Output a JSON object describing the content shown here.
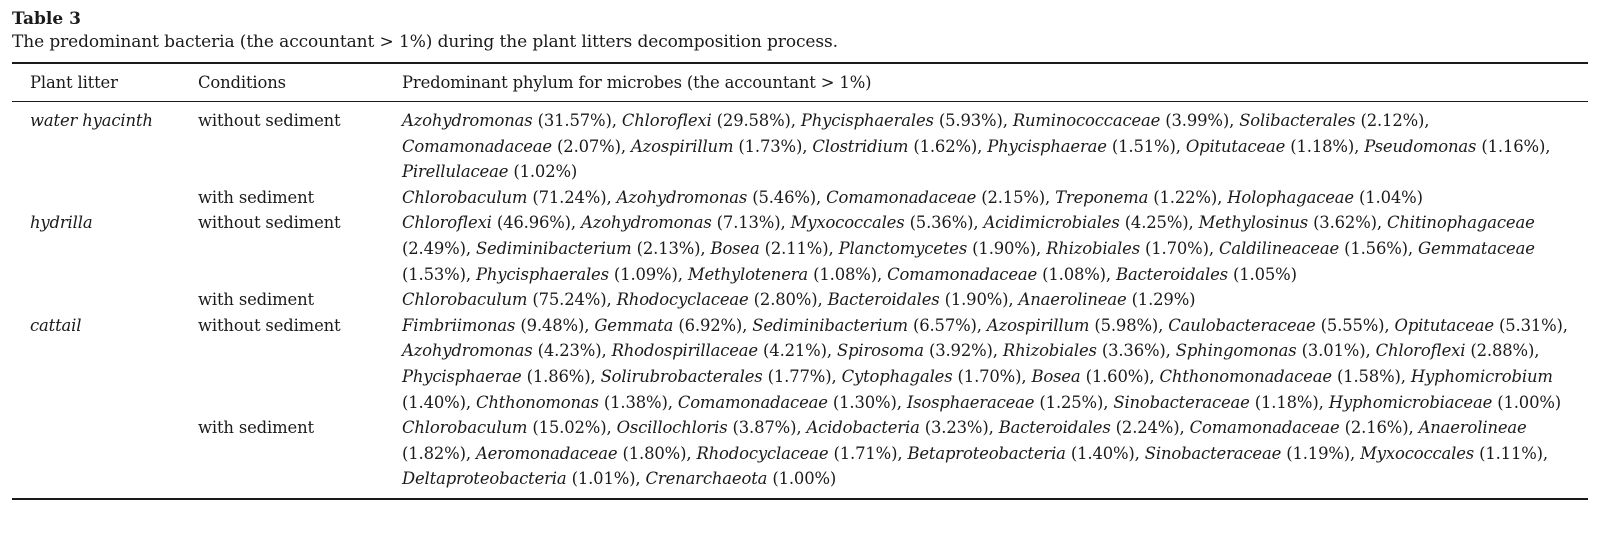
{
  "table_label": "Table 3",
  "caption": "The predominant bacteria (the accountant > 1%) during the plant litters decomposition process.",
  "headers": {
    "plant": "Plant litter",
    "conditions": "Conditions",
    "phylum": "Predominant phylum for microbes (the accountant > 1%)"
  },
  "rows": [
    {
      "plant": "water hyacinth",
      "condition": "without sediment",
      "taxa": [
        {
          "name": "Azohydromonas",
          "pct": "(31.57%)"
        },
        {
          "name": "Chloroflexi",
          "pct": "(29.58%)"
        },
        {
          "name": "Phycisphaerales",
          "pct": "(5.93%)"
        },
        {
          "name": "Ruminococcaceae",
          "pct": "(3.99%)"
        },
        {
          "name": "Solibacterales",
          "pct": "(2.12%)"
        },
        {
          "name": "Comamonadaceae",
          "pct": "(2.07%)"
        },
        {
          "name": "Azospirillum",
          "pct": "(1.73%)"
        },
        {
          "name": "Clostridium",
          "pct": "(1.62%)"
        },
        {
          "name": "Phycisphaerae",
          "pct": "(1.51%)"
        },
        {
          "name": "Opitutaceae",
          "pct": "(1.18%)"
        },
        {
          "name": "Pseudomonas",
          "pct": "(1.16%)"
        },
        {
          "name": "Pirellulaceae",
          "pct": "(1.02%)"
        }
      ]
    },
    {
      "plant": "",
      "condition": "with sediment",
      "taxa": [
        {
          "name": "Chlorobaculum",
          "pct": "(71.24%)"
        },
        {
          "name": "Azohydromonas",
          "pct": "(5.46%)"
        },
        {
          "name": "Comamonadaceae",
          "pct": "(2.15%)"
        },
        {
          "name": "Treponema",
          "pct": "(1.22%)"
        },
        {
          "name": "Holophagaceae",
          "pct": "(1.04%)"
        }
      ]
    },
    {
      "plant": "hydrilla",
      "condition": "without sediment",
      "taxa": [
        {
          "name": "Chloroflexi",
          "pct": "(46.96%)"
        },
        {
          "name": "Azohydromonas",
          "pct": "(7.13%)"
        },
        {
          "name": "Myxococcales",
          "pct": "(5.36%)"
        },
        {
          "name": "Acidimicrobiales",
          "pct": "(4.25%)"
        },
        {
          "name": "Methylosinus",
          "pct": "(3.62%)"
        },
        {
          "name": "Chitinophagaceae",
          "pct": "(2.49%)"
        },
        {
          "name": "Sediminibacterium",
          "pct": "(2.13%)"
        },
        {
          "name": "Bosea",
          "pct": "(2.11%)"
        },
        {
          "name": "Planctomycetes",
          "pct": "(1.90%)"
        },
        {
          "name": "Rhizobiales",
          "pct": "(1.70%)"
        },
        {
          "name": "Caldilineaceae",
          "pct": "(1.56%)"
        },
        {
          "name": "Gemmataceae",
          "pct": "(1.53%)"
        },
        {
          "name": "Phycisphaerales",
          "pct": "(1.09%)"
        },
        {
          "name": "Methylotenera",
          "pct": "(1.08%)"
        },
        {
          "name": "Comamonadaceae",
          "pct": "(1.08%)"
        },
        {
          "name": "Bacteroidales",
          "pct": "(1.05%)"
        }
      ]
    },
    {
      "plant": "",
      "condition": "with sediment",
      "taxa": [
        {
          "name": "Chlorobaculum",
          "pct": "(75.24%)"
        },
        {
          "name": "Rhodocyclaceae",
          "pct": "(2.80%)"
        },
        {
          "name": "Bacteroidales",
          "pct": "(1.90%)"
        },
        {
          "name": "Anaerolineae",
          "pct": "(1.29%)"
        }
      ]
    },
    {
      "plant": "cattail",
      "condition": "without sediment",
      "taxa": [
        {
          "name": "Fimbriimonas",
          "pct": "(9.48%)"
        },
        {
          "name": "Gemmata",
          "pct": "(6.92%)"
        },
        {
          "name": "Sediminibacterium",
          "pct": "(6.57%)"
        },
        {
          "name": "Azospirillum",
          "pct": "(5.98%)"
        },
        {
          "name": "Caulobacteraceae",
          "pct": "(5.55%)"
        },
        {
          "name": "Opitutaceae",
          "pct": "(5.31%)"
        },
        {
          "name": "Azohydromonas",
          "pct": "(4.23%)"
        },
        {
          "name": "Rhodospirillaceae",
          "pct": "(4.21%)"
        },
        {
          "name": "Spirosoma",
          "pct": "(3.92%)"
        },
        {
          "name": "Rhizobiales",
          "pct": "(3.36%)"
        },
        {
          "name": "Sphingomonas",
          "pct": "(3.01%)"
        },
        {
          "name": "Chloroflexi",
          "pct": "(2.88%)"
        },
        {
          "name": "Phycisphaerae",
          "pct": "(1.86%)"
        },
        {
          "name": "Solirubrobacterales",
          "pct": "(1.77%)"
        },
        {
          "name": "Cytophagales",
          "pct": "(1.70%)"
        },
        {
          "name": "Bosea",
          "pct": "(1.60%)"
        },
        {
          "name": "Chthonomonadaceae",
          "pct": "(1.58%)"
        },
        {
          "name": "Hyphomicrobium",
          "pct": "(1.40%)"
        },
        {
          "name": "Chthonomonas",
          "pct": "(1.38%)"
        },
        {
          "name": "Comamonadaceae",
          "pct": "(1.30%)"
        },
        {
          "name": "Isosphaeraceae",
          "pct": "(1.25%)"
        },
        {
          "name": "Sinobacteraceae",
          "pct": "(1.18%)"
        },
        {
          "name": "Hyphomicrobiaceae",
          "pct": "(1.00%)"
        }
      ]
    },
    {
      "plant": "",
      "condition": "with sediment",
      "taxa": [
        {
          "name": "Chlorobaculum",
          "pct": "(15.02%)"
        },
        {
          "name": "Oscillochloris",
          "pct": "(3.87%)"
        },
        {
          "name": "Acidobacteria",
          "pct": "(3.23%)"
        },
        {
          "name": "Bacteroidales",
          "pct": "(2.24%)"
        },
        {
          "name": "Comamonadaceae",
          "pct": "(2.16%)"
        },
        {
          "name": "Anaerolineae",
          "pct": "(1.82%)"
        },
        {
          "name": "Aeromonadaceae",
          "pct": "(1.80%)"
        },
        {
          "name": "Rhodocyclaceae",
          "pct": "(1.71%)"
        },
        {
          "name": "Betaproteobacteria",
          "pct": "(1.40%)"
        },
        {
          "name": "Sinobacteraceae",
          "pct": "(1.19%)"
        },
        {
          "name": "Myxococcales",
          "pct": "(1.11%)"
        },
        {
          "name": "Deltaproteobacteria",
          "pct": "(1.01%)"
        },
        {
          "name": "Crenarchaeota",
          "pct": "(1.00%)"
        }
      ]
    }
  ]
}
